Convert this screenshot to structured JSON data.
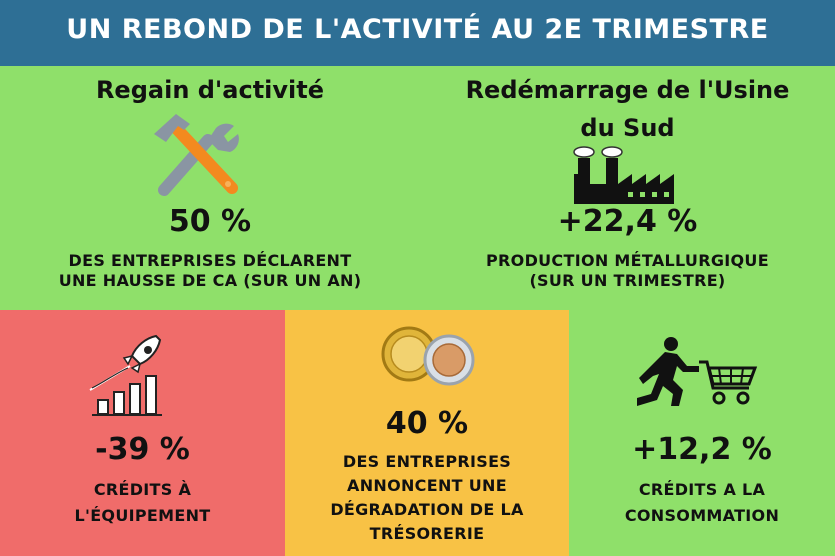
{
  "header": {
    "title": "UN REBOND DE L'ACTIVITÉ AU 2E TRIMESTRE"
  },
  "panels": {
    "activity": {
      "heading": "Regain d'activité",
      "value": "50 %",
      "desc_line1": "DES ENTREPRISES DÉCLARENT",
      "desc_line2": "UNE HAUSSE DE CA (SUR UN AN)",
      "icon": "tools-icon"
    },
    "factory": {
      "heading_line1": "Redémarrage de l'Usine",
      "heading_line2": "du Sud",
      "value": "+22,4 %",
      "desc_line1": "PRODUCTION MÉTALLURGIQUE",
      "desc_line2": "(SUR UN TRIMESTRE)",
      "icon": "factory-icon"
    },
    "equipment": {
      "value": "-39 %",
      "desc_line1": "CRÉDITS À",
      "desc_line2": "L'ÉQUIPEMENT",
      "icon": "rocket-chart-icon",
      "color": "#f06c6a"
    },
    "treasury": {
      "value": "40 %",
      "desc_line1": "DES ENTREPRISES",
      "desc_line2": "ANNONCENT UNE",
      "desc_line3": "DÉGRADATION DE LA",
      "desc_line4": "TRÉSORERIE",
      "icon": "coins-icon",
      "color": "#f8c245"
    },
    "consumption": {
      "value": "+12,2 %",
      "desc_line1": "CRÉDITS A LA",
      "desc_line2": "CONSOMMATION",
      "icon": "shopping-cart-icon"
    }
  },
  "colors": {
    "header": "#2e6f95",
    "green": "#8fe06a",
    "red": "#f06c6a",
    "yellow": "#f8c245"
  }
}
